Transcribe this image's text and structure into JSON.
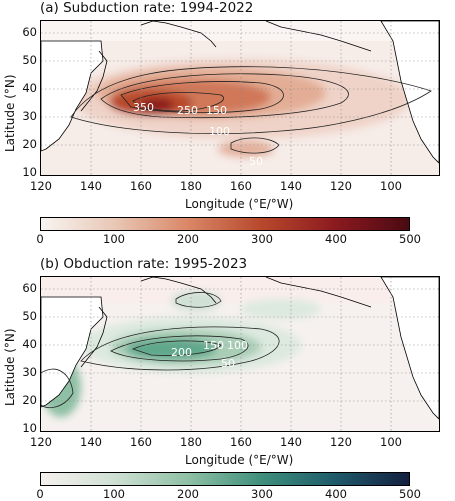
{
  "panel_a": {
    "title": "(a) Subduction rate: 1994-2022",
    "ylabel": "Latitude (°N)",
    "xlabel": "Longitude (°E/°W)",
    "yticks": [
      "60",
      "50",
      "40",
      "30",
      "20",
      "10"
    ],
    "xticks": [
      "120",
      "140",
      "160",
      "180",
      "160",
      "140",
      "120",
      "100"
    ],
    "contour_labels": [
      "350",
      "250",
      "150",
      "100",
      "50"
    ],
    "colorbar_ticks": [
      "0",
      "100",
      "200",
      "300",
      "400",
      "500"
    ],
    "colormap": [
      "#f7f4f1",
      "#e9c7b6",
      "#d98767",
      "#b8482c",
      "#8b1a1f",
      "#4a0a12"
    ]
  },
  "panel_b": {
    "title": "(b) Obduction rate: 1995-2023",
    "ylabel": "Latitude (°N)",
    "xlabel": "Longitude (°E/°W)",
    "yticks": [
      "60",
      "50",
      "40",
      "30",
      "20",
      "10"
    ],
    "xticks": [
      "120",
      "140",
      "160",
      "180",
      "160",
      "140",
      "120",
      "100"
    ],
    "contour_labels": [
      "200",
      "150",
      "100",
      "50"
    ],
    "colorbar_ticks": [
      "0",
      "100",
      "200",
      "300",
      "400",
      "500"
    ],
    "colormap": [
      "#f6f1ee",
      "#cfe0d4",
      "#8fc0a5",
      "#3f8f7c",
      "#1f5a6a",
      "#14203f"
    ]
  }
}
